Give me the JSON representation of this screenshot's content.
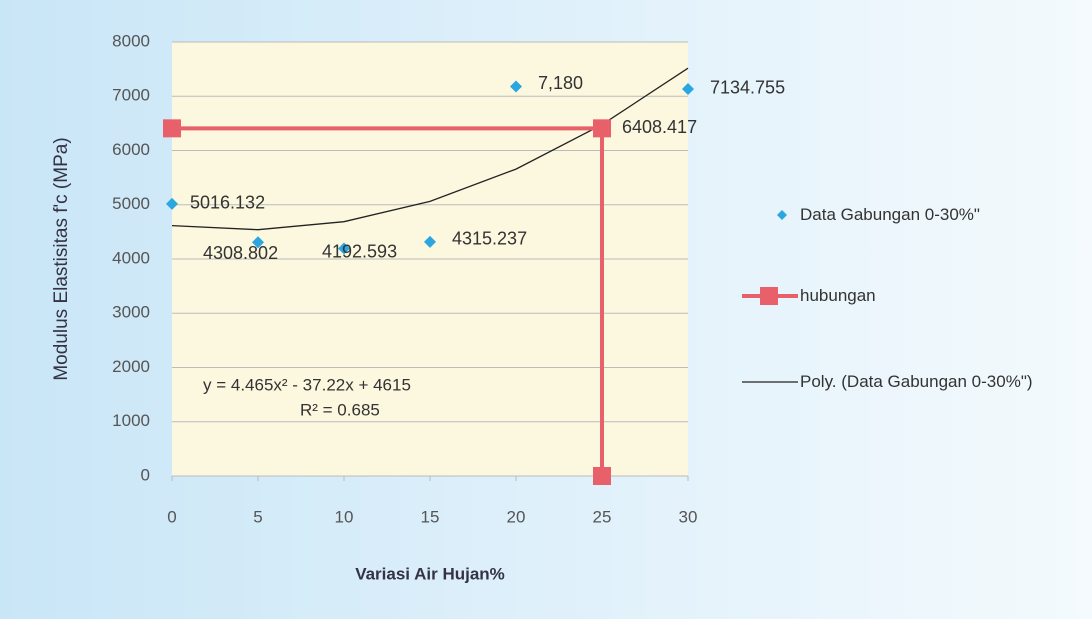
{
  "chart_data": {
    "type": "scatter",
    "y_label": "Modulus Elastisitas f'c (MPa)",
    "x_label": "Variasi Air Hujan%",
    "xlim": [
      0,
      30
    ],
    "xticks": [
      0,
      5,
      10,
      15,
      20,
      25,
      30
    ],
    "ylim": [
      0,
      8000
    ],
    "yticks": [
      0,
      1000,
      2000,
      3000,
      4000,
      5000,
      6000,
      7000,
      8000
    ],
    "grid": true,
    "annotations": [
      "y = 4.465x² - 37.22x + 4615",
      "R² = 0.685"
    ],
    "series": [
      {
        "name": "Data Gabungan 0-30%\"",
        "type": "scatter",
        "marker": "diamond",
        "color": "#2aa7e0",
        "x": [
          0,
          5,
          10,
          15,
          20,
          30
        ],
        "values": [
          5016.132,
          4308.802,
          4192.593,
          4315.237,
          7180,
          7134.755
        ],
        "value_labels": [
          "5016.132",
          "4308.802",
          "4192.593",
          "4315.237",
          "7,180",
          "7134.755"
        ]
      },
      {
        "name": "hubungan",
        "type": "line",
        "marker": "square",
        "color": "#e8606a",
        "x": [
          0,
          25,
          25
        ],
        "values": [
          6408.417,
          6408.417,
          0
        ],
        "value_labels": [
          null,
          "6408.417",
          null
        ]
      },
      {
        "name": "Poly. (Data Gabungan 0-30%\")",
        "type": "line",
        "marker": "none",
        "color": "#222222",
        "x": [
          0,
          5,
          10,
          15,
          20,
          25,
          30
        ],
        "values": [
          4615,
          4540,
          4688,
          5062,
          5657,
          6476,
          7517
        ]
      }
    ]
  }
}
